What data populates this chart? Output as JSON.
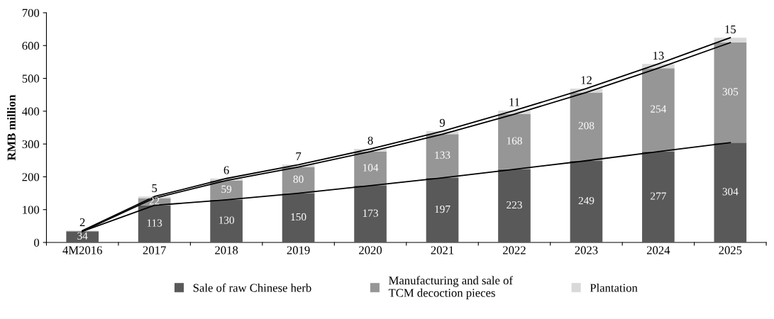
{
  "chart_data": {
    "type": "bar",
    "stacked": true,
    "ylabel": "RMB million",
    "categories": [
      "4M2016",
      "2017",
      "2018",
      "2019",
      "2020",
      "2021",
      "2022",
      "2023",
      "2024",
      "2025"
    ],
    "series": [
      {
        "name": "Sale of raw Chinese herb",
        "color": "#595959",
        "values": [
          34,
          113,
          130,
          150,
          173,
          197,
          223,
          249,
          277,
          304
        ],
        "value_labels": [
          "34",
          "113",
          "130",
          "150",
          "173",
          "197",
          "223",
          "249",
          "277",
          "304"
        ]
      },
      {
        "name": "Manufacturing and sale of\nTCM decoction pieces",
        "color": "#969696",
        "values": [
          null,
          22,
          59,
          80,
          104,
          133,
          168,
          208,
          254,
          305
        ],
        "value_labels": [
          null,
          "22",
          "59",
          "80",
          "104",
          "133",
          "168",
          "208",
          "254",
          "305"
        ]
      },
      {
        "name": "Plantation",
        "color": "#d9d9d9",
        "values": [
          2,
          5,
          6,
          7,
          8,
          9,
          11,
          12,
          13,
          15
        ],
        "value_labels": [
          "2",
          "5",
          "6",
          "7",
          "8",
          "9",
          "11",
          "12",
          "13",
          "15"
        ]
      },
      {
        "type": "line",
        "color": "#000000",
        "values": [
          34,
          113,
          130,
          150,
          173,
          197,
          223,
          249,
          277,
          304
        ]
      },
      {
        "type": "line",
        "color": "#000000",
        "values": [
          34,
          135,
          189,
          230,
          277,
          330,
          391,
          457,
          531,
          609
        ]
      },
      {
        "type": "line",
        "color": "#000000",
        "values": [
          36,
          140,
          195,
          237,
          285,
          339,
          402,
          469,
          544,
          624
        ]
      }
    ],
    "ylim": [
      0,
      700
    ],
    "yticks": [
      0,
      100,
      200,
      300,
      400,
      500,
      600,
      700
    ],
    "grid": false,
    "legend": "bottom"
  }
}
